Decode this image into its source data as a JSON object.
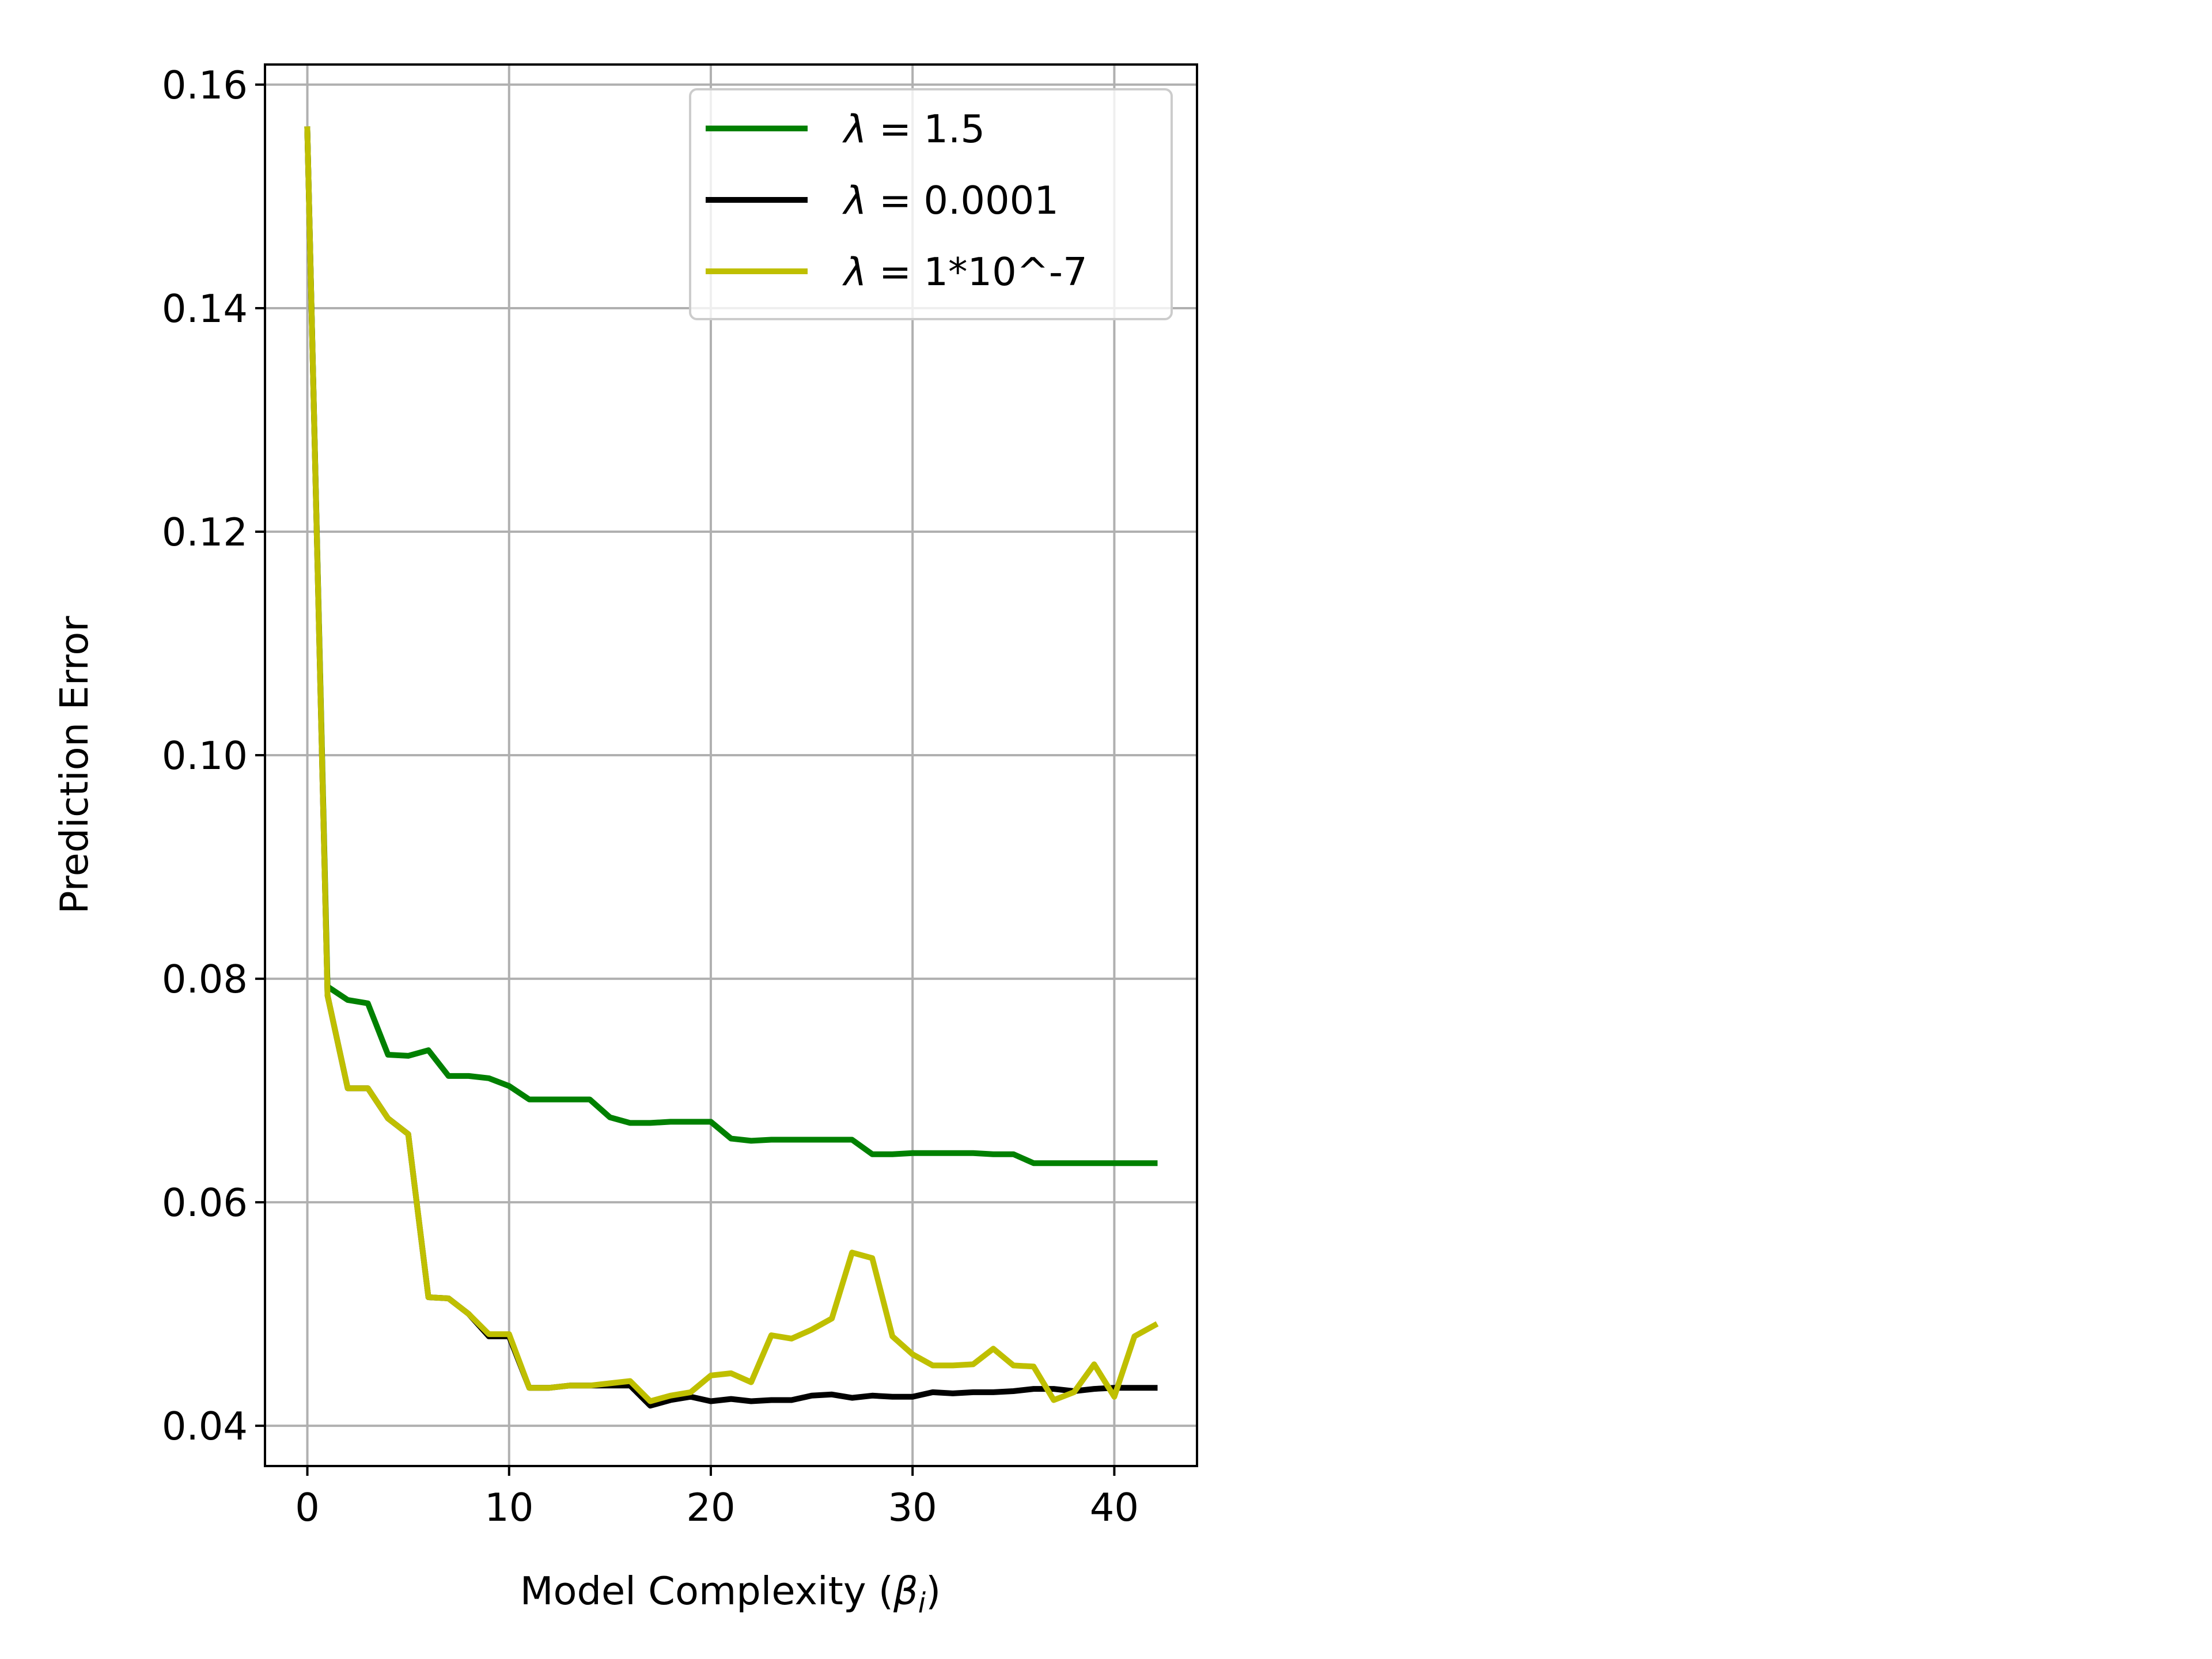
{
  "chart_data": {
    "type": "line",
    "title": "",
    "xlabel": "Model Complexity (",
    "xlabel_symbol": "β",
    "xlabel_subscript": "i",
    "xlabel_close": ")",
    "ylabel": "Prediction Error",
    "xlim": [
      -2.1,
      44.1
    ],
    "ylim": [
      0.0364,
      0.1618
    ],
    "xticks": [
      0,
      10,
      20,
      30,
      40
    ],
    "xtick_labels": [
      "0",
      "10",
      "20",
      "30",
      "40"
    ],
    "yticks": [
      0.04,
      0.06,
      0.08,
      0.1,
      0.12,
      0.14,
      0.16
    ],
    "ytick_labels": [
      "0.04",
      "0.06",
      "0.08",
      "0.10",
      "0.12",
      "0.14",
      "0.16"
    ],
    "grid": true,
    "legend_position": "upper-right",
    "x": [
      0,
      1,
      2,
      3,
      4,
      5,
      6,
      7,
      8,
      9,
      10,
      11,
      12,
      13,
      14,
      15,
      16,
      17,
      18,
      19,
      20,
      21,
      22,
      23,
      24,
      25,
      26,
      27,
      28,
      29,
      30,
      31,
      32,
      33,
      34,
      35,
      36,
      37,
      38,
      39,
      40,
      41,
      42
    ],
    "series": [
      {
        "name_symbol": "λ",
        "name_value": " = 1.5",
        "color": "#008000",
        "values": [
          0.156,
          0.0793,
          0.0781,
          0.0778,
          0.0732,
          0.0731,
          0.0736,
          0.0713,
          0.0713,
          0.0711,
          0.0704,
          0.0692,
          0.0692,
          0.0692,
          0.0692,
          0.0676,
          0.0671,
          0.0671,
          0.0672,
          0.0672,
          0.0672,
          0.0657,
          0.0655,
          0.0656,
          0.0656,
          0.0656,
          0.0656,
          0.0656,
          0.0643,
          0.0643,
          0.0644,
          0.0644,
          0.0644,
          0.0644,
          0.0643,
          0.0643,
          0.0635,
          0.0635,
          0.0635,
          0.0635,
          0.0635,
          0.0635,
          0.0635
        ]
      },
      {
        "name_symbol": "λ",
        "name_value": " = 0.0001",
        "color": "#000000",
        "values": [
          0.156,
          0.0785,
          0.0702,
          0.0702,
          0.0675,
          0.0661,
          0.0515,
          0.0514,
          0.05,
          0.048,
          0.048,
          0.0434,
          0.0434,
          0.0436,
          0.0436,
          0.0436,
          0.0436,
          0.0418,
          0.0423,
          0.0426,
          0.0422,
          0.0424,
          0.0422,
          0.0423,
          0.0423,
          0.0427,
          0.0428,
          0.0425,
          0.0427,
          0.0426,
          0.0426,
          0.043,
          0.0429,
          0.043,
          0.043,
          0.0431,
          0.0433,
          0.0433,
          0.0431,
          0.0433,
          0.0434,
          0.0434,
          0.0434
        ]
      },
      {
        "name_symbol": "λ",
        "name_value": " = 1*10^-7",
        "color": "#bfbf00",
        "values": [
          0.156,
          0.0785,
          0.0702,
          0.0702,
          0.0675,
          0.0661,
          0.0515,
          0.0514,
          0.05,
          0.0482,
          0.0482,
          0.0434,
          0.0434,
          0.0436,
          0.0436,
          0.0438,
          0.044,
          0.0422,
          0.0427,
          0.043,
          0.0445,
          0.0447,
          0.0439,
          0.0481,
          0.0478,
          0.0486,
          0.0496,
          0.0555,
          0.055,
          0.048,
          0.0464,
          0.0454,
          0.0454,
          0.0455,
          0.0469,
          0.0454,
          0.0453,
          0.0423,
          0.043,
          0.0455,
          0.0426,
          0.048,
          0.049
        ]
      }
    ]
  }
}
